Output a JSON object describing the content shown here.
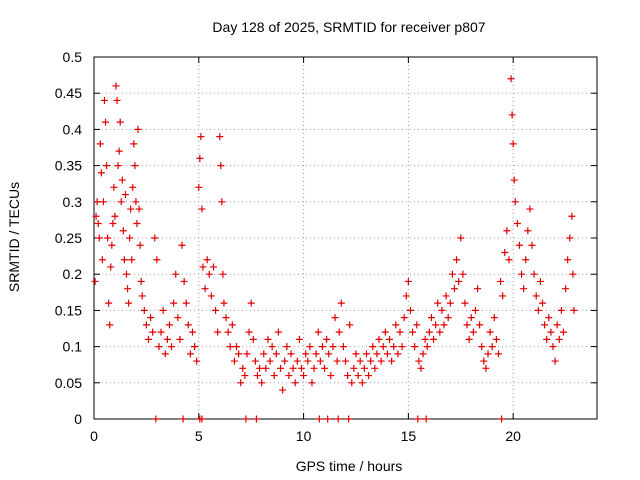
{
  "chart_data": {
    "type": "scatter",
    "title": "Day 128 of 2025, SRMTID for receiver p807",
    "xlabel": "GPS time / hours",
    "ylabel": "SRMTID / TECUs",
    "xlim": [
      0,
      24
    ],
    "ylim": [
      0,
      0.5
    ],
    "x_ticks": [
      {
        "value": 0,
        "label": "0"
      },
      {
        "value": 5,
        "label": "5"
      },
      {
        "value": 10,
        "label": "10"
      },
      {
        "value": 15,
        "label": "15"
      },
      {
        "value": 20,
        "label": "20"
      }
    ],
    "y_ticks": [
      {
        "value": 0,
        "label": "0"
      },
      {
        "value": 0.05,
        "label": "0.05"
      },
      {
        "value": 0.1,
        "label": "0.1"
      },
      {
        "value": 0.15,
        "label": "0.15"
      },
      {
        "value": 0.2,
        "label": "0.2"
      },
      {
        "value": 0.25,
        "label": "0.25"
      },
      {
        "value": 0.3,
        "label": "0.3"
      },
      {
        "value": 0.35,
        "label": "0.35"
      },
      {
        "value": 0.4,
        "label": "0.4"
      },
      {
        "value": 0.45,
        "label": "0.45"
      },
      {
        "value": 0.5,
        "label": "0.5"
      }
    ],
    "grid": true,
    "marker": "+",
    "marker_color": "#e00000",
    "series": [
      {
        "name": "SRMTID",
        "points": [
          [
            0.05,
            0.19
          ],
          [
            0.1,
            0.28
          ],
          [
            0.15,
            0.3
          ],
          [
            0.2,
            0.27
          ],
          [
            0.25,
            0.25
          ],
          [
            0.3,
            0.38
          ],
          [
            0.35,
            0.34
          ],
          [
            0.4,
            0.22
          ],
          [
            0.45,
            0.3
          ],
          [
            0.5,
            0.44
          ],
          [
            0.55,
            0.41
          ],
          [
            0.6,
            0.35
          ],
          [
            0.65,
            0.25
          ],
          [
            0.7,
            0.16
          ],
          [
            0.75,
            0.13
          ],
          [
            0.8,
            0.21
          ],
          [
            0.85,
            0.24
          ],
          [
            0.9,
            0.27
          ],
          [
            0.95,
            0.32
          ],
          [
            1.0,
            0.28
          ],
          [
            1.05,
            0.46
          ],
          [
            1.1,
            0.44
          ],
          [
            1.15,
            0.35
          ],
          [
            1.2,
            0.37
          ],
          [
            1.25,
            0.41
          ],
          [
            1.3,
            0.3
          ],
          [
            1.35,
            0.33
          ],
          [
            1.4,
            0.26
          ],
          [
            1.45,
            0.22
          ],
          [
            1.5,
            0.31
          ],
          [
            1.55,
            0.2
          ],
          [
            1.6,
            0.18
          ],
          [
            1.65,
            0.16
          ],
          [
            1.7,
            0.25
          ],
          [
            1.75,
            0.29
          ],
          [
            1.8,
            0.22
          ],
          [
            1.85,
            0.32
          ],
          [
            1.9,
            0.38
          ],
          [
            1.95,
            0.35
          ],
          [
            2.0,
            0.3
          ],
          [
            2.05,
            0.27
          ],
          [
            2.1,
            0.4
          ],
          [
            2.15,
            0.29
          ],
          [
            2.2,
            0.24
          ],
          [
            2.25,
            0.19
          ],
          [
            2.3,
            0.17
          ],
          [
            2.4,
            0.15
          ],
          [
            2.5,
            0.13
          ],
          [
            2.6,
            0.11
          ],
          [
            2.7,
            0.14
          ],
          [
            2.8,
            0.12
          ],
          [
            2.9,
            0.25
          ],
          [
            3.0,
            0.22
          ],
          [
            3.1,
            0.1
          ],
          [
            3.2,
            0.12
          ],
          [
            3.3,
            0.15
          ],
          [
            3.4,
            0.09
          ],
          [
            3.5,
            0.11
          ],
          [
            3.6,
            0.13
          ],
          [
            3.7,
            0.1
          ],
          [
            3.8,
            0.16
          ],
          [
            3.9,
            0.2
          ],
          [
            4.0,
            0.14
          ],
          [
            4.1,
            0.11
          ],
          [
            4.2,
            0.24
          ],
          [
            4.3,
            0.19
          ],
          [
            4.4,
            0.16
          ],
          [
            4.5,
            0.13
          ],
          [
            4.6,
            0.09
          ],
          [
            4.7,
            0.12
          ],
          [
            4.8,
            0.1
          ],
          [
            4.9,
            0.08
          ],
          [
            5.0,
            0.32
          ],
          [
            5.05,
            0.36
          ],
          [
            5.1,
            0.39
          ],
          [
            5.15,
            0.29
          ],
          [
            5.2,
            0.21
          ],
          [
            5.3,
            0.18
          ],
          [
            5.4,
            0.22
          ],
          [
            5.5,
            0.2
          ],
          [
            5.6,
            0.17
          ],
          [
            5.7,
            0.21
          ],
          [
            5.8,
            0.15
          ],
          [
            5.9,
            0.12
          ],
          [
            6.0,
            0.39
          ],
          [
            6.05,
            0.35
          ],
          [
            6.1,
            0.3
          ],
          [
            6.15,
            0.2
          ],
          [
            6.2,
            0.16
          ],
          [
            6.3,
            0.14
          ],
          [
            6.4,
            0.12
          ],
          [
            6.5,
            0.1
          ],
          [
            6.6,
            0.13
          ],
          [
            6.7,
            0.08
          ],
          [
            6.8,
            0.1
          ],
          [
            6.9,
            0.09
          ],
          [
            7.0,
            0.05
          ],
          [
            7.1,
            0.07
          ],
          [
            7.2,
            0.06
          ],
          [
            7.3,
            0.09
          ],
          [
            7.4,
            0.12
          ],
          [
            7.5,
            0.16
          ],
          [
            7.6,
            0.11
          ],
          [
            7.7,
            0.08
          ],
          [
            7.8,
            0.06
          ],
          [
            7.9,
            0.07
          ],
          [
            8.0,
            0.05
          ],
          [
            8.1,
            0.09
          ],
          [
            8.2,
            0.07
          ],
          [
            8.3,
            0.11
          ],
          [
            8.4,
            0.08
          ],
          [
            8.5,
            0.1
          ],
          [
            8.6,
            0.06
          ],
          [
            8.7,
            0.09
          ],
          [
            8.8,
            0.12
          ],
          [
            8.9,
            0.07
          ],
          [
            9.0,
            0.04
          ],
          [
            9.1,
            0.08
          ],
          [
            9.2,
            0.1
          ],
          [
            9.3,
            0.06
          ],
          [
            9.4,
            0.09
          ],
          [
            9.5,
            0.07
          ],
          [
            9.6,
            0.05
          ],
          [
            9.7,
            0.08
          ],
          [
            9.8,
            0.11
          ],
          [
            9.9,
            0.07
          ],
          [
            10.0,
            0.06
          ],
          [
            10.1,
            0.09
          ],
          [
            10.2,
            0.08
          ],
          [
            10.3,
            0.1
          ],
          [
            10.4,
            0.05
          ],
          [
            10.5,
            0.07
          ],
          [
            10.6,
            0.09
          ],
          [
            10.7,
            0.12
          ],
          [
            10.8,
            0.08
          ],
          [
            10.9,
            0.1
          ],
          [
            11.0,
            0.07
          ],
          [
            11.1,
            0.11
          ],
          [
            11.2,
            0.09
          ],
          [
            11.3,
            0.06
          ],
          [
            11.4,
            0.1
          ],
          [
            11.5,
            0.14
          ],
          [
            11.6,
            0.08
          ],
          [
            11.7,
            0.12
          ],
          [
            11.8,
            0.16
          ],
          [
            11.9,
            0.1
          ],
          [
            12.0,
            0.08
          ],
          [
            12.1,
            0.06
          ],
          [
            12.2,
            0.13
          ],
          [
            12.3,
            0.05
          ],
          [
            12.4,
            0.07
          ],
          [
            12.5,
            0.09
          ],
          [
            12.6,
            0.06
          ],
          [
            12.7,
            0.08
          ],
          [
            12.8,
            0.05
          ],
          [
            12.9,
            0.07
          ],
          [
            13.0,
            0.09
          ],
          [
            13.1,
            0.06
          ],
          [
            13.2,
            0.08
          ],
          [
            13.3,
            0.1
          ],
          [
            13.4,
            0.07
          ],
          [
            13.5,
            0.09
          ],
          [
            13.6,
            0.11
          ],
          [
            13.7,
            0.08
          ],
          [
            13.8,
            0.1
          ],
          [
            13.9,
            0.12
          ],
          [
            14.0,
            0.09
          ],
          [
            14.1,
            0.11
          ],
          [
            14.2,
            0.08
          ],
          [
            14.3,
            0.1
          ],
          [
            14.4,
            0.13
          ],
          [
            14.5,
            0.09
          ],
          [
            14.6,
            0.12
          ],
          [
            14.7,
            0.1
          ],
          [
            14.8,
            0.14
          ],
          [
            14.9,
            0.17
          ],
          [
            15.0,
            0.19
          ],
          [
            15.1,
            0.15
          ],
          [
            15.2,
            0.12
          ],
          [
            15.3,
            0.1
          ],
          [
            15.4,
            0.13
          ],
          [
            15.5,
            0.08
          ],
          [
            15.6,
            0.07
          ],
          [
            15.7,
            0.09
          ],
          [
            15.8,
            0.11
          ],
          [
            15.9,
            0.1
          ],
          [
            16.0,
            0.12
          ],
          [
            16.1,
            0.14
          ],
          [
            16.2,
            0.11
          ],
          [
            16.3,
            0.13
          ],
          [
            16.4,
            0.16
          ],
          [
            16.5,
            0.12
          ],
          [
            16.6,
            0.15
          ],
          [
            16.7,
            0.13
          ],
          [
            16.8,
            0.17
          ],
          [
            16.9,
            0.14
          ],
          [
            17.0,
            0.16
          ],
          [
            17.1,
            0.2
          ],
          [
            17.2,
            0.18
          ],
          [
            17.3,
            0.22
          ],
          [
            17.4,
            0.19
          ],
          [
            17.5,
            0.25
          ],
          [
            17.6,
            0.2
          ],
          [
            17.7,
            0.16
          ],
          [
            17.8,
            0.13
          ],
          [
            17.9,
            0.11
          ],
          [
            18.0,
            0.14
          ],
          [
            18.1,
            0.12
          ],
          [
            18.2,
            0.15
          ],
          [
            18.3,
            0.18
          ],
          [
            18.4,
            0.13
          ],
          [
            18.5,
            0.1
          ],
          [
            18.6,
            0.08
          ],
          [
            18.7,
            0.07
          ],
          [
            18.8,
            0.09
          ],
          [
            18.9,
            0.12
          ],
          [
            19.0,
            0.1
          ],
          [
            19.1,
            0.14
          ],
          [
            19.2,
            0.11
          ],
          [
            19.3,
            0.09
          ],
          [
            19.4,
            0.19
          ],
          [
            19.5,
            0.17
          ],
          [
            19.6,
            0.23
          ],
          [
            19.7,
            0.26
          ],
          [
            19.8,
            0.22
          ],
          [
            19.9,
            0.47
          ],
          [
            19.95,
            0.42
          ],
          [
            20.0,
            0.38
          ],
          [
            20.05,
            0.33
          ],
          [
            20.1,
            0.3
          ],
          [
            20.2,
            0.27
          ],
          [
            20.3,
            0.24
          ],
          [
            20.4,
            0.2
          ],
          [
            20.5,
            0.18
          ],
          [
            20.6,
            0.22
          ],
          [
            20.7,
            0.26
          ],
          [
            20.8,
            0.29
          ],
          [
            20.9,
            0.24
          ],
          [
            21.0,
            0.2
          ],
          [
            21.1,
            0.17
          ],
          [
            21.2,
            0.15
          ],
          [
            21.3,
            0.19
          ],
          [
            21.4,
            0.16
          ],
          [
            21.5,
            0.13
          ],
          [
            21.6,
            0.11
          ],
          [
            21.7,
            0.14
          ],
          [
            21.8,
            0.12
          ],
          [
            21.9,
            0.1
          ],
          [
            22.0,
            0.08
          ],
          [
            22.1,
            0.13
          ],
          [
            22.2,
            0.11
          ],
          [
            22.3,
            0.15
          ],
          [
            22.4,
            0.12
          ],
          [
            22.5,
            0.18
          ],
          [
            22.6,
            0.22
          ],
          [
            22.7,
            0.25
          ],
          [
            22.8,
            0.28
          ],
          [
            22.85,
            0.2
          ],
          [
            22.9,
            0.15
          ]
        ]
      },
      {
        "name": "zero-baseline markers",
        "points": [
          [
            2.95,
            0
          ],
          [
            4.25,
            0
          ],
          [
            5.05,
            0
          ],
          [
            5.15,
            0
          ],
          [
            7.25,
            0
          ],
          [
            7.75,
            0
          ],
          [
            10.75,
            0
          ],
          [
            11.15,
            0
          ],
          [
            11.65,
            0
          ],
          [
            12.15,
            0
          ],
          [
            15.45,
            0
          ],
          [
            15.85,
            0
          ],
          [
            19.45,
            0
          ]
        ]
      }
    ]
  }
}
